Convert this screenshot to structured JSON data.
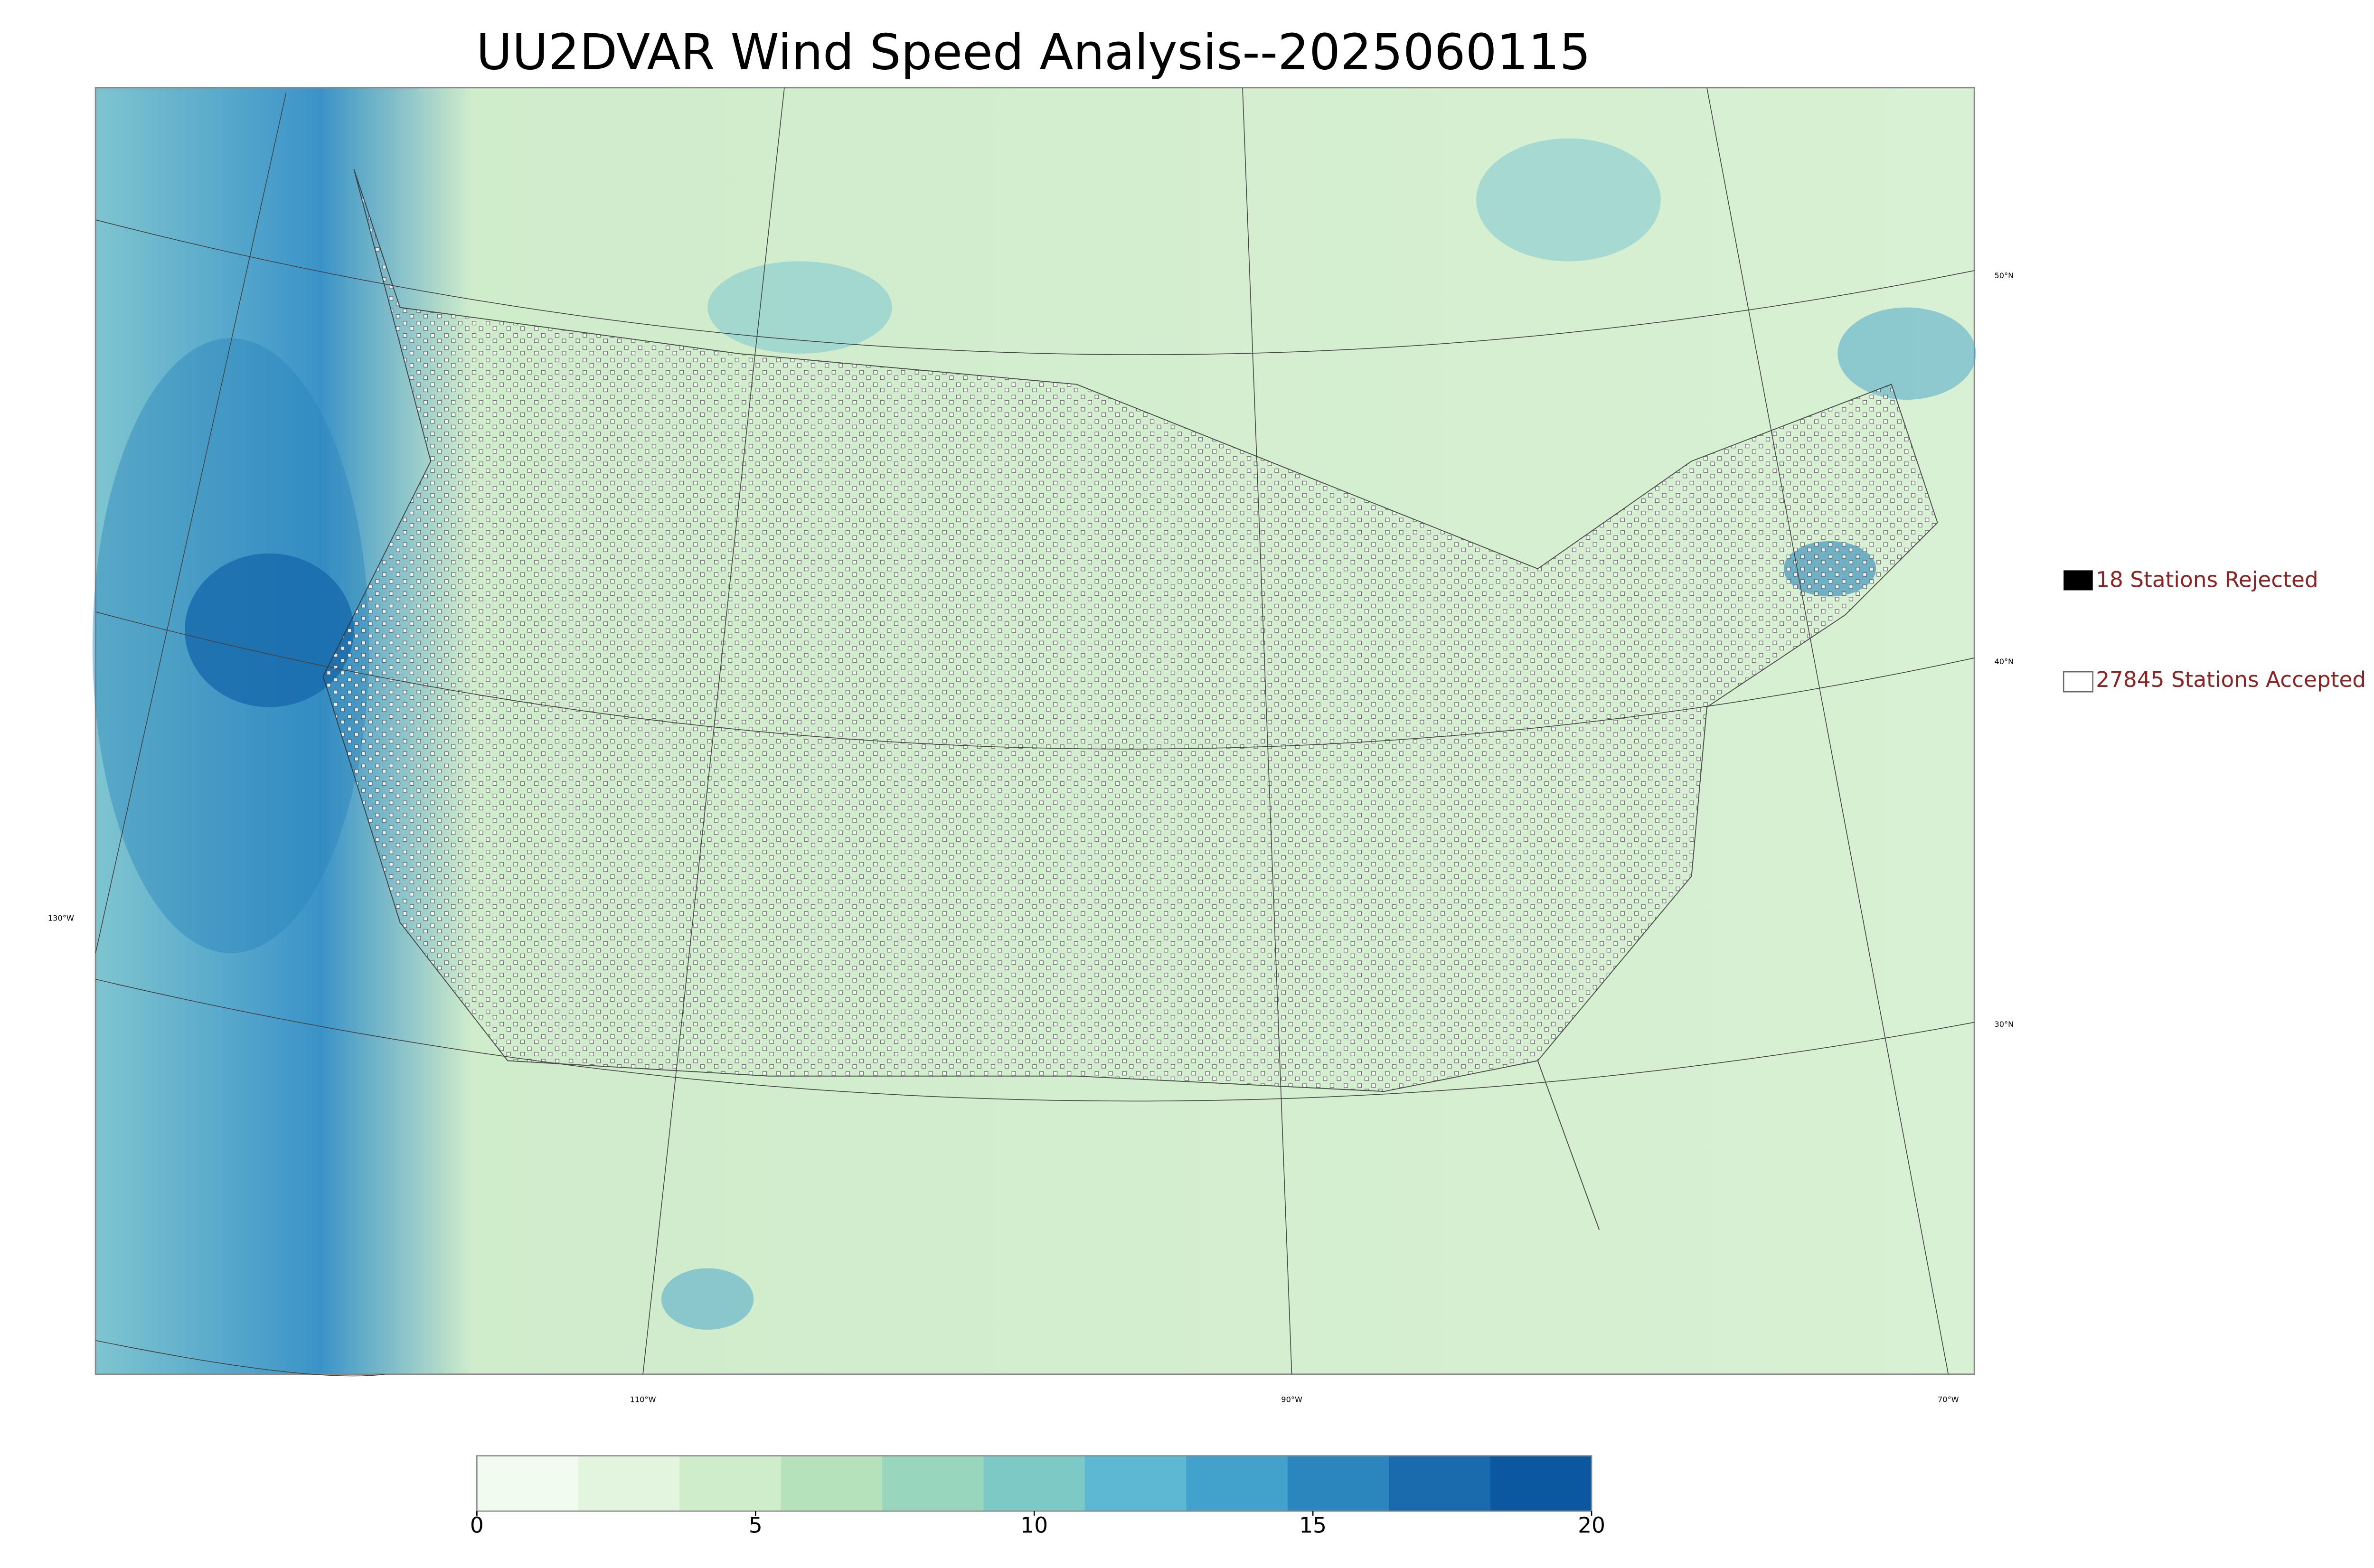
{
  "title": "UU2DVAR Wind Speed Analysis--2025060115",
  "legend": {
    "rejected": "18 Stations Rejected",
    "accepted": "27845 Stations Accepted"
  },
  "lat_labels": [
    "50°N",
    "40°N",
    "30°N"
  ],
  "lon_labels": [
    "130°W",
    "110°W",
    "90°W",
    "70°W"
  ],
  "colorbar": {
    "lim": [
      0,
      20
    ],
    "ticks": [
      0,
      5,
      10,
      15,
      20
    ],
    "colors": [
      "#f2fbef",
      "#e4f5df",
      "#cfeccb",
      "#b5e2bb",
      "#98d6be",
      "#7cc9c6",
      "#5cb8d3",
      "#42a2cb",
      "#2b86bd",
      "#1a6bae",
      "#0b58a0"
    ]
  }
}
